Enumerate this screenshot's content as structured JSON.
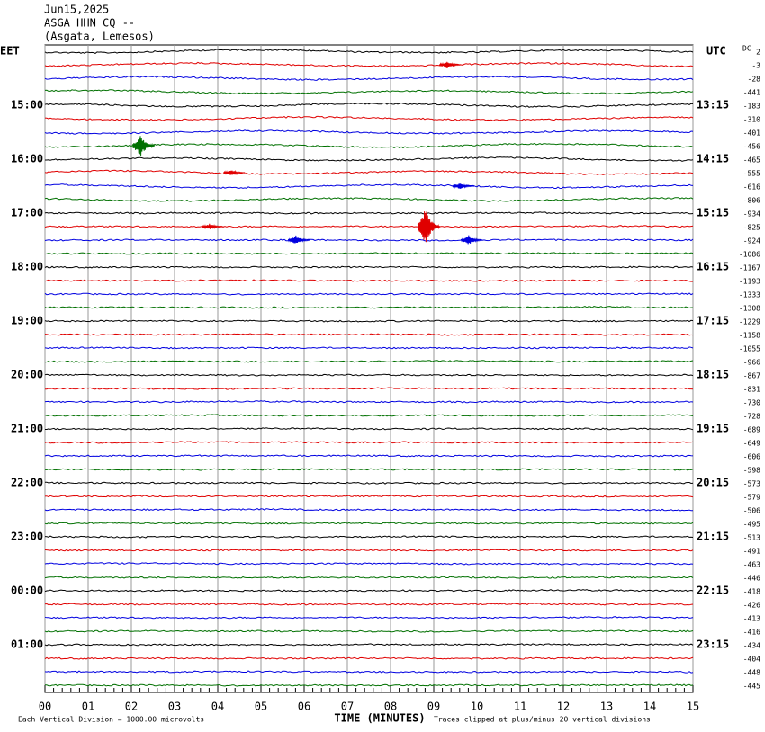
{
  "chart_data": {
    "type": "helicorder",
    "title_lines": [
      "Jun15,2025",
      "ASGA HHN CQ --",
      "(Asgata, Lemesos)"
    ],
    "left_axis_label": "EET",
    "right_axis_label": "UTC",
    "dc_label": "DC",
    "left_labels": [
      "15:00",
      "16:00",
      "17:00",
      "18:00",
      "19:00",
      "20:00",
      "21:00",
      "22:00",
      "23:00",
      "00:00",
      "01:00"
    ],
    "right_labels": [
      "13:15",
      "14:15",
      "15:15",
      "16:15",
      "17:15",
      "18:15",
      "19:15",
      "20:15",
      "21:15",
      "22:15",
      "23:15"
    ],
    "trace_colors": [
      "#000000",
      "#e00000",
      "#0000e0",
      "#007000"
    ],
    "dc_offsets": [
      2,
      -3,
      -28,
      -441,
      -183,
      -310,
      -401,
      -456,
      -465,
      -555,
      -616,
      -806,
      -934,
      -825,
      -924,
      -1086,
      -1167,
      -1193,
      -1333,
      -1308,
      -1229,
      -1158,
      -1055,
      -966,
      -867,
      -831,
      -730,
      -728,
      -689,
      -649,
      -606,
      -598,
      -573,
      -579,
      -506,
      -495,
      -513,
      -491,
      -463,
      -446,
      -418,
      -426,
      -413,
      -416,
      -434,
      -404,
      -448,
      -445
    ],
    "xlim": [
      0,
      15
    ],
    "xticks": [
      {
        "value": 0,
        "label": "00"
      },
      {
        "value": 1,
        "label": "01"
      },
      {
        "value": 2,
        "label": "02"
      },
      {
        "value": 3,
        "label": "03"
      },
      {
        "value": 4,
        "label": "04"
      },
      {
        "value": 5,
        "label": "05"
      },
      {
        "value": 6,
        "label": "06"
      },
      {
        "value": 7,
        "label": "07"
      },
      {
        "value": 8,
        "label": "08"
      },
      {
        "value": 9,
        "label": "09"
      },
      {
        "value": 10,
        "label": "10"
      },
      {
        "value": 11,
        "label": "11"
      },
      {
        "value": 12,
        "label": "12"
      },
      {
        "value": 13,
        "label": "13"
      },
      {
        "value": 14,
        "label": "14"
      },
      {
        "value": 15,
        "label": "15"
      }
    ],
    "xlabel": "TIME (MINUTES)",
    "scale_note": "Each Vertical Division = 1000.00 microvolts",
    "clip_note": "Traces clipped at plus/minus 20 vertical divisions",
    "events": [
      {
        "trace": 7,
        "minute": 2.2,
        "amplitude": 12
      },
      {
        "trace": 13,
        "minute": 8.8,
        "amplitude": 20
      },
      {
        "trace": 1,
        "minute": 9.3,
        "amplitude": 4
      },
      {
        "trace": 14,
        "minute": 5.8,
        "amplitude": 5
      },
      {
        "trace": 14,
        "minute": 9.8,
        "amplitude": 5
      },
      {
        "trace": 9,
        "minute": 4.3,
        "amplitude": 3
      },
      {
        "trace": 10,
        "minute": 9.6,
        "amplitude": 3
      },
      {
        "trace": 13,
        "minute": 3.8,
        "amplitude": 3
      }
    ]
  }
}
